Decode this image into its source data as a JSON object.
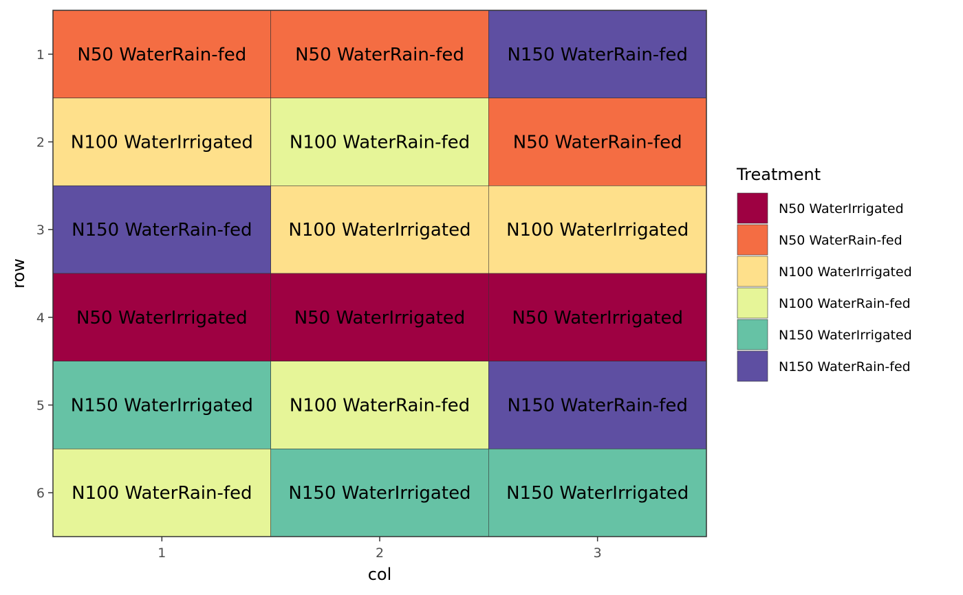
{
  "chart_data": {
    "type": "heatmap",
    "xlabel": "col",
    "ylabel": "row",
    "x_ticks": [
      "1",
      "2",
      "3"
    ],
    "y_ticks": [
      "1",
      "2",
      "3",
      "4",
      "5",
      "6"
    ],
    "legend": {
      "title": "Treatment",
      "placement": "right",
      "entries": [
        {
          "label": "N50 WaterIrrigated",
          "color": "#9e0142"
        },
        {
          "label": "N50 WaterRain-fed",
          "color": "#f46d43"
        },
        {
          "label": "N100 WaterIrrigated",
          "color": "#fee08b"
        },
        {
          "label": "N100 WaterRain-fed",
          "color": "#e6f598"
        },
        {
          "label": "N150 WaterIrrigated",
          "color": "#66c2a5"
        },
        {
          "label": "N150 WaterRain-fed",
          "color": "#5e4fa2"
        }
      ]
    },
    "cells": [
      {
        "row": 1,
        "col": 1,
        "treatment": "N50 WaterRain-fed"
      },
      {
        "row": 1,
        "col": 2,
        "treatment": "N50 WaterRain-fed"
      },
      {
        "row": 1,
        "col": 3,
        "treatment": "N150 WaterRain-fed"
      },
      {
        "row": 2,
        "col": 1,
        "treatment": "N100 WaterIrrigated"
      },
      {
        "row": 2,
        "col": 2,
        "treatment": "N100 WaterRain-fed"
      },
      {
        "row": 2,
        "col": 3,
        "treatment": "N50 WaterRain-fed"
      },
      {
        "row": 3,
        "col": 1,
        "treatment": "N150 WaterRain-fed"
      },
      {
        "row": 3,
        "col": 2,
        "treatment": "N100 WaterIrrigated"
      },
      {
        "row": 3,
        "col": 3,
        "treatment": "N100 WaterIrrigated"
      },
      {
        "row": 4,
        "col": 1,
        "treatment": "N50 WaterIrrigated"
      },
      {
        "row": 4,
        "col": 2,
        "treatment": "N50 WaterIrrigated"
      },
      {
        "row": 4,
        "col": 3,
        "treatment": "N50 WaterIrrigated"
      },
      {
        "row": 5,
        "col": 1,
        "treatment": "N150 WaterIrrigated"
      },
      {
        "row": 5,
        "col": 2,
        "treatment": "N100 WaterRain-fed"
      },
      {
        "row": 5,
        "col": 3,
        "treatment": "N150 WaterRain-fed"
      },
      {
        "row": 6,
        "col": 1,
        "treatment": "N100 WaterRain-fed"
      },
      {
        "row": 6,
        "col": 2,
        "treatment": "N150 WaterIrrigated"
      },
      {
        "row": 6,
        "col": 3,
        "treatment": "N150 WaterIrrigated"
      }
    ]
  }
}
